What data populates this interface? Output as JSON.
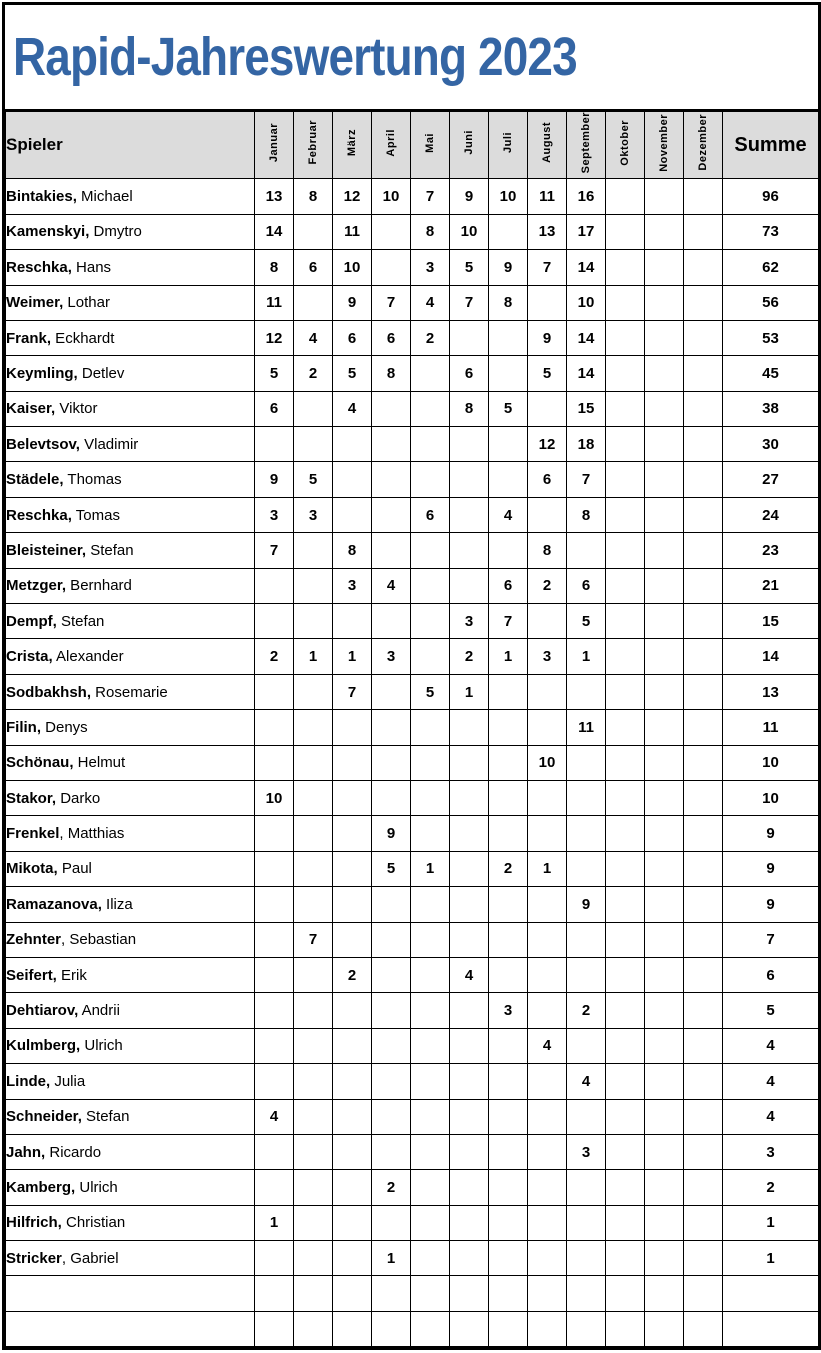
{
  "title": "Rapid-Jahreswertung 2023",
  "colors": {
    "title_blue": "#3465a4",
    "header_gray": "#dcdcdc",
    "border_black": "#000000"
  },
  "header": {
    "player": "Spieler",
    "sum": "Summe",
    "months": [
      "Januar",
      "Februar",
      "März",
      "April",
      "Mai",
      "Juni",
      "Juli",
      "August",
      "September",
      "Oktober",
      "November",
      "Dezember"
    ]
  },
  "players": [
    {
      "surname": "Bintakies,",
      "firstname": " Michael",
      "scores": [
        "13",
        "8",
        "12",
        "10",
        "7",
        "9",
        "10",
        "11",
        "16",
        "",
        "",
        ""
      ],
      "sum": "96"
    },
    {
      "surname": "Kamenskyi,",
      "firstname": " Dmytro",
      "scores": [
        "14",
        "",
        "11",
        "",
        "8",
        "10",
        "",
        "13",
        "17",
        "",
        "",
        ""
      ],
      "sum": "73"
    },
    {
      "surname": "Reschka,",
      "firstname": " Hans",
      "scores": [
        "8",
        "6",
        "10",
        "",
        "3",
        "5",
        "9",
        "7",
        "14",
        "",
        "",
        ""
      ],
      "sum": "62"
    },
    {
      "surname": "Weimer,",
      "firstname": " Lothar",
      "scores": [
        "11",
        "",
        "9",
        "7",
        "4",
        "7",
        "8",
        "",
        "10",
        "",
        "",
        ""
      ],
      "sum": "56"
    },
    {
      "surname": "Frank,",
      "firstname": " Eckhardt",
      "scores": [
        "12",
        "4",
        "6",
        "6",
        "2",
        "",
        "",
        "9",
        "14",
        "",
        "",
        ""
      ],
      "sum": "53"
    },
    {
      "surname": "Keymling,",
      "firstname": " Detlev",
      "scores": [
        "5",
        "2",
        "5",
        "8",
        "",
        "6",
        "",
        "5",
        "14",
        "",
        "",
        ""
      ],
      "sum": "45"
    },
    {
      "surname": "Kaiser,",
      "firstname": " Viktor",
      "scores": [
        "6",
        "",
        "4",
        "",
        "",
        "8",
        "5",
        "",
        "15",
        "",
        "",
        ""
      ],
      "sum": "38"
    },
    {
      "surname": "Belevtsov,",
      "firstname": " Vladimir",
      "scores": [
        "",
        "",
        "",
        "",
        "",
        "",
        "",
        "12",
        "18",
        "",
        "",
        ""
      ],
      "sum": "30"
    },
    {
      "surname": "Städele,",
      "firstname": " Thomas",
      "scores": [
        "9",
        "5",
        "",
        "",
        "",
        "",
        "",
        "6",
        "7",
        "",
        "",
        ""
      ],
      "sum": "27"
    },
    {
      "surname": "Reschka,",
      "firstname": " Tomas",
      "scores": [
        "3",
        "3",
        "",
        "",
        "6",
        "",
        "4",
        "",
        "8",
        "",
        "",
        ""
      ],
      "sum": "24"
    },
    {
      "surname": "Bleisteiner,",
      "firstname": " Stefan",
      "scores": [
        "7",
        "",
        "8",
        "",
        "",
        "",
        "",
        "8",
        "",
        "",
        "",
        ""
      ],
      "sum": "23"
    },
    {
      "surname": "Metzger,",
      "firstname": " Bernhard",
      "scores": [
        "",
        "",
        "3",
        "4",
        "",
        "",
        "6",
        "2",
        "6",
        "",
        "",
        ""
      ],
      "sum": "21"
    },
    {
      "surname": "Dempf,",
      "firstname": " Stefan",
      "scores": [
        "",
        "",
        "",
        "",
        "",
        "3",
        "7",
        "",
        "5",
        "",
        "",
        ""
      ],
      "sum": "15"
    },
    {
      "surname": "Crista,",
      "firstname": " Alexander",
      "scores": [
        "2",
        "1",
        "1",
        "3",
        "",
        "2",
        "1",
        "3",
        "1",
        "",
        "",
        ""
      ],
      "sum": "14"
    },
    {
      "surname": "Sodbakhsh,",
      "firstname": " Rosemarie",
      "scores": [
        "",
        "",
        "7",
        "",
        "5",
        "1",
        "",
        "",
        "",
        "",
        "",
        ""
      ],
      "sum": "13"
    },
    {
      "surname": "Filin,",
      "firstname": " Denys",
      "scores": [
        "",
        "",
        "",
        "",
        "",
        "",
        "",
        "",
        "11",
        "",
        "",
        ""
      ],
      "sum": "11"
    },
    {
      "surname": "Schönau,",
      "firstname": " Helmut",
      "scores": [
        "",
        "",
        "",
        "",
        "",
        "",
        "",
        "10",
        "",
        "",
        "",
        ""
      ],
      "sum": "10"
    },
    {
      "surname": "Stakor,",
      "firstname": " Darko",
      "scores": [
        "10",
        "",
        "",
        "",
        "",
        "",
        "",
        "",
        "",
        "",
        "",
        ""
      ],
      "sum": "10"
    },
    {
      "surname": "Frenkel",
      "firstname": ", Matthias",
      "scores": [
        "",
        "",
        "",
        "9",
        "",
        "",
        "",
        "",
        "",
        "",
        "",
        ""
      ],
      "sum": "9"
    },
    {
      "surname": "Mikota,",
      "firstname": " Paul",
      "scores": [
        "",
        "",
        "",
        "5",
        "1",
        "",
        "2",
        "1",
        "",
        "",
        "",
        ""
      ],
      "sum": "9"
    },
    {
      "surname": "Ramazanova,",
      "firstname": " Iliza",
      "scores": [
        "",
        "",
        "",
        "",
        "",
        "",
        "",
        "",
        "9",
        "",
        "",
        ""
      ],
      "sum": "9"
    },
    {
      "surname": "Zehnter",
      "firstname": ", Sebastian",
      "scores": [
        "",
        "7",
        "",
        "",
        "",
        "",
        "",
        "",
        "",
        "",
        "",
        ""
      ],
      "sum": "7"
    },
    {
      "surname": "Seifert,",
      "firstname": " Erik",
      "scores": [
        "",
        "",
        "2",
        "",
        "",
        "4",
        "",
        "",
        "",
        "",
        "",
        ""
      ],
      "sum": "6"
    },
    {
      "surname": "Dehtiarov,",
      "firstname": " Andrii",
      "scores": [
        "",
        "",
        "",
        "",
        "",
        "",
        "3",
        "",
        "2",
        "",
        "",
        ""
      ],
      "sum": "5"
    },
    {
      "surname": "Kulmberg,",
      "firstname": " Ulrich",
      "scores": [
        "",
        "",
        "",
        "",
        "",
        "",
        "",
        "4",
        "",
        "",
        "",
        ""
      ],
      "sum": "4"
    },
    {
      "surname": "Linde,",
      "firstname": " Julia",
      "scores": [
        "",
        "",
        "",
        "",
        "",
        "",
        "",
        "",
        "4",
        "",
        "",
        ""
      ],
      "sum": "4"
    },
    {
      "surname": "Schneider,",
      "firstname": " Stefan",
      "scores": [
        "4",
        "",
        "",
        "",
        "",
        "",
        "",
        "",
        "",
        "",
        "",
        ""
      ],
      "sum": "4"
    },
    {
      "surname": "Jahn,",
      "firstname": " Ricardo",
      "scores": [
        "",
        "",
        "",
        "",
        "",
        "",
        "",
        "",
        "3",
        "",
        "",
        ""
      ],
      "sum": "3"
    },
    {
      "surname": "Kamberg,",
      "firstname": " Ulrich",
      "scores": [
        "",
        "",
        "",
        "2",
        "",
        "",
        "",
        "",
        "",
        "",
        "",
        ""
      ],
      "sum": "2"
    },
    {
      "surname": "Hilfrich,",
      "firstname": " Christian",
      "scores": [
        "1",
        "",
        "",
        "",
        "",
        "",
        "",
        "",
        "",
        "",
        "",
        ""
      ],
      "sum": "1"
    },
    {
      "surname": "Stricker",
      "firstname": ", Gabriel",
      "scores": [
        "",
        "",
        "",
        "1",
        "",
        "",
        "",
        "",
        "",
        "",
        "",
        ""
      ],
      "sum": "1"
    }
  ],
  "empty_rows": 2
}
